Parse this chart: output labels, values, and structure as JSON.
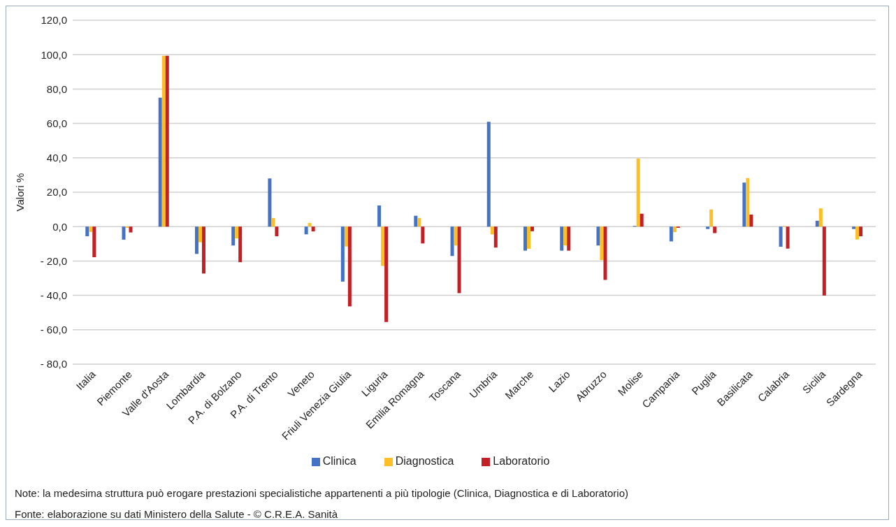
{
  "chart_data": {
    "type": "bar",
    "ylabel": "Valori %",
    "categories": [
      "Italia",
      "Piemonte",
      "Valle d'Aosta",
      "Lombardia",
      "P.A. di Bolzano",
      "P.A. di Trento",
      "Veneto",
      "Friuli Venezia Giulia",
      "Liguria",
      "Emilia Romagna",
      "Toscana",
      "Umbria",
      "Marche",
      "Lazio",
      "Abruzzo",
      "Molise",
      "Campania",
      "Puglia",
      "Basilicata",
      "Calabria",
      "Sicilia",
      "Sardegna"
    ],
    "series": [
      {
        "name": "Clinica",
        "color": "#4472c4",
        "values": [
          -5.6,
          -7.6,
          75.0,
          -15.9,
          -11.0,
          28.0,
          -4.5,
          -32.0,
          12.3,
          6.3,
          -17.1,
          61.0,
          -14.0,
          -14.0,
          -11.0,
          0.4,
          -8.6,
          -1.4,
          25.6,
          -11.7,
          3.4,
          -1.4
        ]
      },
      {
        "name": "Diagnostica",
        "color": "#fdbf26",
        "values": [
          -3.1,
          -0.7,
          99.4,
          -9.1,
          -6.9,
          5.0,
          2.1,
          -11.6,
          -22.9,
          5.0,
          -11.0,
          -4.5,
          -12.9,
          -11.0,
          -19.5,
          39.6,
          -3.2,
          10.0,
          28.2,
          0.3,
          10.6,
          -7.5
        ]
      },
      {
        "name": "Laboratorio",
        "color": "#c32026",
        "values": [
          -17.8,
          -3.4,
          99.4,
          -27.3,
          -20.7,
          -5.6,
          -2.8,
          -46.4,
          -55.5,
          -9.8,
          -38.7,
          -12.2,
          -2.7,
          -14.0,
          -31.0,
          7.5,
          -0.7,
          -3.8,
          7.0,
          -12.8,
          -40.1,
          -5.6
        ]
      }
    ],
    "ylim": [
      -80,
      120
    ],
    "yticks": [
      {
        "value": -80,
        "label": "- 80,0"
      },
      {
        "value": -60,
        "label": "- 60,0"
      },
      {
        "value": -40,
        "label": "- 40,0"
      },
      {
        "value": -20,
        "label": "- 20,0"
      },
      {
        "value": 0,
        "label": "0,0"
      },
      {
        "value": 20,
        "label": "20,0"
      },
      {
        "value": 40,
        "label": "40,0"
      },
      {
        "value": 60,
        "label": "60,0"
      },
      {
        "value": 80,
        "label": "80,0"
      },
      {
        "value": 100,
        "label": "100,0"
      },
      {
        "value": 120,
        "label": "120,0"
      }
    ],
    "grid": "y",
    "legend": "bottom",
    "annotations": [
      "Note: la medesima struttura può erogare prestazioni specialistiche appartenenti a più tipologie (Clinica, Diagnostica e di Laboratorio)",
      "Fonte: elaborazione su dati Ministero della Salute - © C.R.E.A. Sanità"
    ]
  }
}
